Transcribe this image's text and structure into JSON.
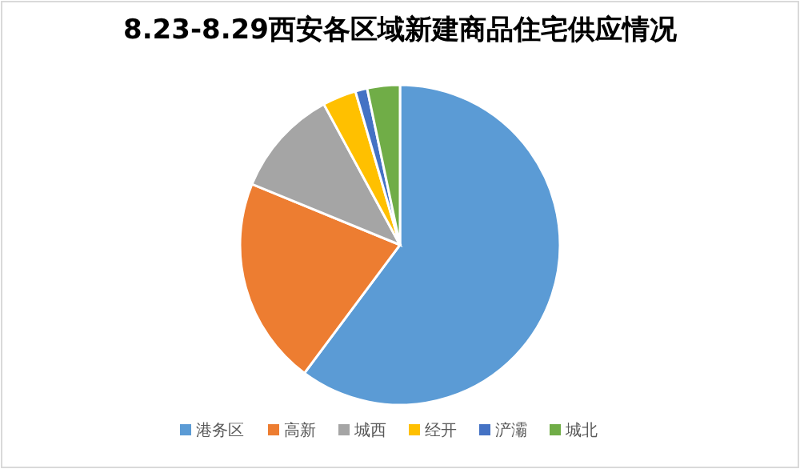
{
  "chart_data": {
    "type": "pie",
    "title": "8.23-8.29西安各区域新建商品住宅供应情况",
    "categories": [
      "港务区",
      "高新",
      "城西",
      "经开",
      "浐灞",
      "城北"
    ],
    "values": [
      60.2,
      21,
      10.9,
      3.4,
      1.2,
      3.3
    ],
    "colors": [
      "#5b9bd5",
      "#ed7d31",
      "#a5a5a5",
      "#ffc000",
      "#4472c4",
      "#70ad47"
    ],
    "legend": "bottom"
  }
}
